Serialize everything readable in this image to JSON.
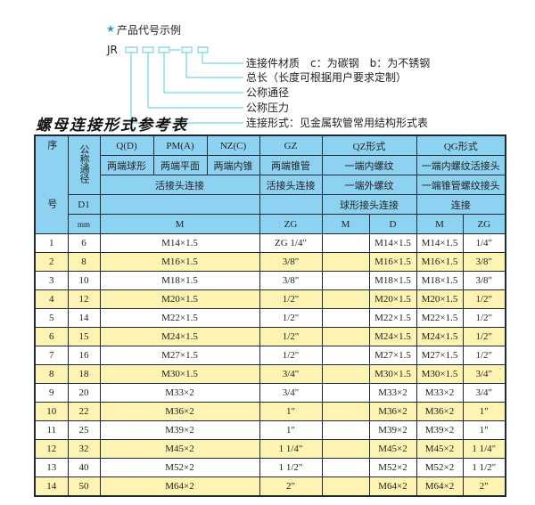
{
  "example": {
    "title": "产品代号示例",
    "star_icon": "star",
    "code_prefix": "JR",
    "labels": [
      "连接件材质　c：为碳钢　b：为不锈钢",
      "总长（长度可根据用户要求定制）",
      "公称通径",
      "公称压力",
      "连接形式：见金属软管常用结构形式表"
    ],
    "line_color": "#5bc8e0"
  },
  "table_title": "螺母连接形式参考表",
  "table": {
    "header_color": "#8ed2f2",
    "stripe_color": "#fdf3b2",
    "head": {
      "seq": "序　号",
      "nominal": "公称通径",
      "d1": "D1",
      "mm": "mm",
      "types": [
        "Q(D)",
        "PM(A)",
        "NZ(C)",
        "GZ",
        "QZ形式",
        "QG形式"
      ],
      "desc": [
        "两端球形",
        "两端平面",
        "两端内锥",
        "两端锥管",
        "一端内螺纹",
        "一端内螺纹活接头"
      ],
      "conn": [
        "活接头连接",
        "活接头连接",
        "一端外螺纹",
        "一端锥管螺纹接头"
      ],
      "conn2": [
        "球形接头连接",
        "连接"
      ],
      "units": [
        "M",
        "ZG",
        "M",
        "D",
        "M",
        "ZG"
      ]
    },
    "rows": [
      {
        "no": "1",
        "dn": "6",
        "m": "M14×1.5",
        "zg": "ZG 1/4\"",
        "qz_m": "",
        "qz_d": "M14×1.5",
        "qg_m": "M14×1.5",
        "qg_zg": "1/4\""
      },
      {
        "no": "2",
        "dn": "8",
        "m": "M16×1.5",
        "zg": "3/8\"",
        "qz_m": "",
        "qz_d": "M16×1.5",
        "qg_m": "M16×1.5",
        "qg_zg": "3/8\""
      },
      {
        "no": "3",
        "dn": "10",
        "m": "M18×1.5",
        "zg": "3/8\"",
        "qz_m": "",
        "qz_d": "M18×1.5",
        "qg_m": "M18×1.5",
        "qg_zg": "3/8\""
      },
      {
        "no": "4",
        "dn": "12",
        "m": "M20×1.5",
        "zg": "1/2\"",
        "qz_m": "",
        "qz_d": "M20×1.5",
        "qg_m": "M20×1.5",
        "qg_zg": "1/2\""
      },
      {
        "no": "5",
        "dn": "14",
        "m": "M22×1.5",
        "zg": "1/2\"",
        "qz_m": "",
        "qz_d": "M22×1.5",
        "qg_m": "M22×1.5",
        "qg_zg": "1/2\""
      },
      {
        "no": "6",
        "dn": "15",
        "m": "M24×1.5",
        "zg": "1/2\"",
        "qz_m": "",
        "qz_d": "M24×1.5",
        "qg_m": "M24×1.5",
        "qg_zg": "1/2\""
      },
      {
        "no": "7",
        "dn": "16",
        "m": "M27×1.5",
        "zg": "1/2\"",
        "qz_m": "",
        "qz_d": "M27×1.5",
        "qg_m": "M27×1.5",
        "qg_zg": "1/2\""
      },
      {
        "no": "8",
        "dn": "18",
        "m": "M30×1.5",
        "zg": "3/4\"",
        "qz_m": "",
        "qz_d": "M30×1.5",
        "qg_m": "M30×1.5",
        "qg_zg": "3/4\""
      },
      {
        "no": "9",
        "dn": "20",
        "m": "M33×2",
        "zg": "3/4\"",
        "qz_m": "",
        "qz_d": "M33×2",
        "qg_m": "M33×2",
        "qg_zg": "3/4\""
      },
      {
        "no": "10",
        "dn": "22",
        "m": "M36×2",
        "zg": "1\"",
        "qz_m": "",
        "qz_d": "M36×2",
        "qg_m": "M36×2",
        "qg_zg": "1\""
      },
      {
        "no": "11",
        "dn": "25",
        "m": "M39×2",
        "zg": "1\"",
        "qz_m": "",
        "qz_d": "M39×2",
        "qg_m": "M39×2",
        "qg_zg": "1\""
      },
      {
        "no": "12",
        "dn": "32",
        "m": "M45×2",
        "zg": "1 1/4\"",
        "qz_m": "",
        "qz_d": "M45×2",
        "qg_m": "M45×2",
        "qg_zg": "1 1/4\""
      },
      {
        "no": "13",
        "dn": "40",
        "m": "M52×2",
        "zg": "1 1/2\"",
        "qz_m": "",
        "qz_d": "M52×2",
        "qg_m": "M52×2",
        "qg_zg": "1 1/2\""
      },
      {
        "no": "14",
        "dn": "50",
        "m": "M64×2",
        "zg": "2\"",
        "qz_m": "",
        "qz_d": "M64×2",
        "qg_m": "M64×2",
        "qg_zg": "2\""
      }
    ]
  }
}
